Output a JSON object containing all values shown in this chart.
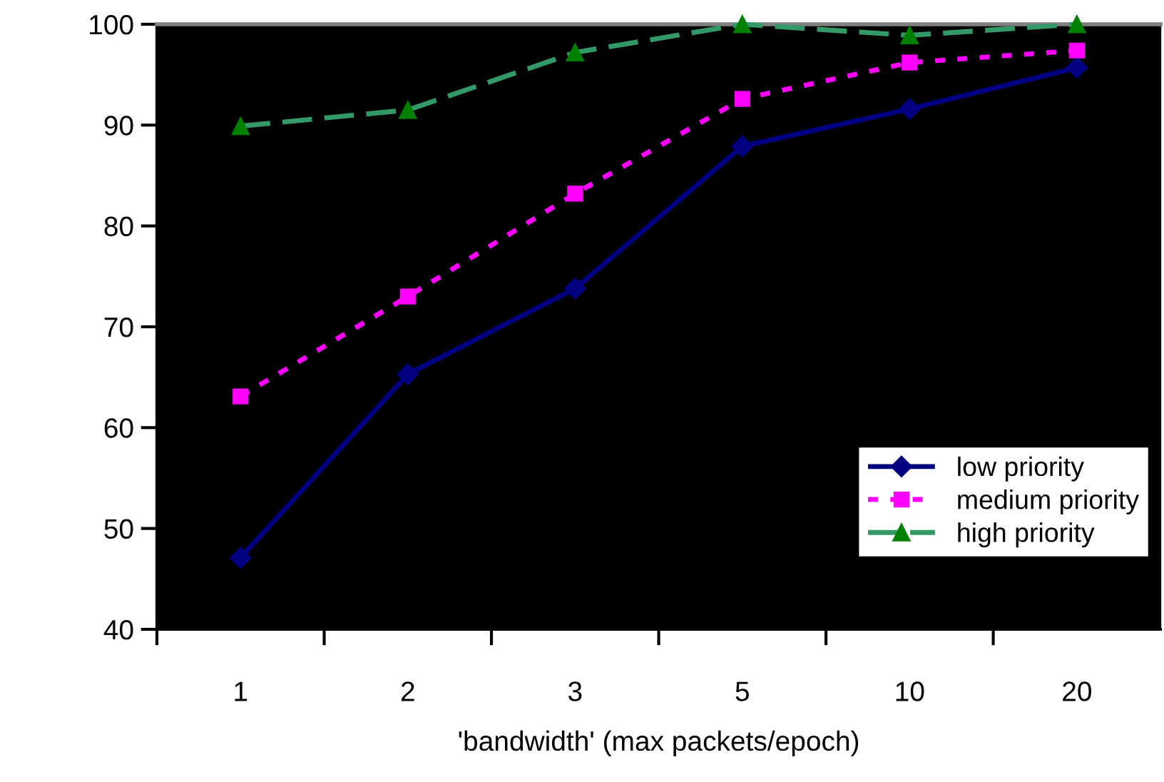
{
  "chart_data": {
    "type": "line",
    "xlabel": "'bandwidth' (max packets/epoch)",
    "categories": [
      "1",
      "2",
      "3",
      "5",
      "10",
      "20"
    ],
    "series": [
      {
        "name": "low priority",
        "color": "#000080",
        "marker": "diamond",
        "line_style": "solid",
        "values": [
          47.1,
          65.3,
          73.8,
          87.9,
          91.6,
          95.7
        ]
      },
      {
        "name": "medium priority",
        "color": "#ff00ff",
        "marker": "square",
        "line_style": "dotted",
        "values": [
          63.1,
          73.0,
          83.2,
          92.6,
          96.2,
          97.4
        ]
      },
      {
        "name": "high priority",
        "color": "#339966",
        "marker": "triangle",
        "line_style": "dashed",
        "values": [
          89.9,
          91.5,
          97.2,
          100,
          98.9,
          100
        ]
      }
    ],
    "ylim": [
      40,
      100
    ],
    "yticks": [
      40,
      50,
      60,
      70,
      80,
      90,
      100
    ],
    "grid": false,
    "legend": "bottom right"
  }
}
